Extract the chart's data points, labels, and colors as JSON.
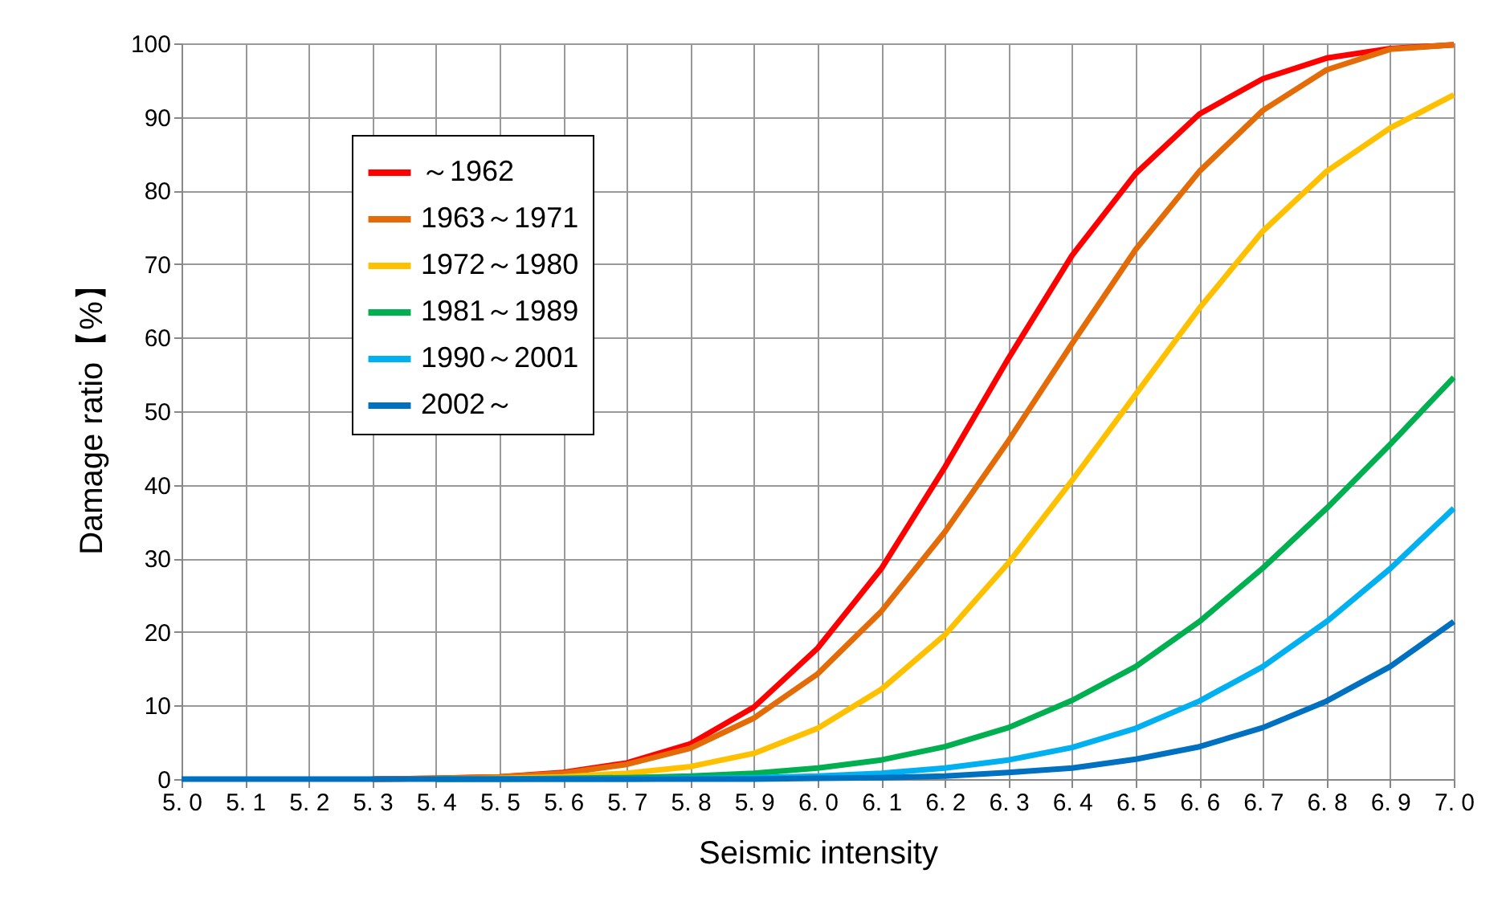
{
  "chart_data": {
    "type": "line",
    "xlabel": "Seismic intensity",
    "ylabel": "Damage ratio【%】",
    "categories": [
      "5. 0",
      "5. 1",
      "5. 2",
      "5. 3",
      "5. 4",
      "5. 5",
      "5. 6",
      "5. 7",
      "5. 8",
      "5. 9",
      "6. 0",
      "6. 1",
      "6. 2",
      "6. 3",
      "6. 4",
      "6. 5",
      "6. 6",
      "6. 7",
      "6. 8",
      "6. 9",
      "7. 0"
    ],
    "ylim": [
      0,
      100
    ],
    "yticks": [
      0,
      10,
      20,
      30,
      40,
      50,
      60,
      70,
      80,
      90,
      100
    ],
    "grid": true,
    "legend": "top left",
    "marker": "none",
    "line_style": "solid",
    "series": [
      {
        "name": "～1962",
        "color": "#ff0000",
        "values": [
          null,
          null,
          null,
          0,
          0.1,
          0.3,
          0.9,
          2.2,
          4.8,
          9.8,
          17.8,
          28.6,
          42.4,
          57.2,
          71.2,
          82.3,
          90.4,
          95.2,
          98.0,
          99.3,
          99.8
        ]
      },
      {
        "name": "1963～1971",
        "color": "#e36c09",
        "values": [
          null,
          null,
          null,
          0,
          0.1,
          0.3,
          0.8,
          2.0,
          4.2,
          8.3,
          14.3,
          22.8,
          33.6,
          46.0,
          59.2,
          72.0,
          82.6,
          90.9,
          96.4,
          99.2,
          99.8
        ]
      },
      {
        "name": "1972～1980",
        "color": "#ffc000",
        "values": [
          null,
          null,
          null,
          null,
          0,
          0.1,
          0.3,
          0.8,
          1.7,
          3.5,
          6.9,
          12.2,
          19.6,
          29.4,
          40.6,
          52.3,
          64.0,
          74.5,
          82.6,
          88.5,
          93.0
        ]
      },
      {
        "name": "1981～1989",
        "color": "#00b050",
        "values": [
          null,
          null,
          null,
          null,
          0,
          0,
          0.1,
          0.2,
          0.4,
          0.8,
          1.5,
          2.6,
          4.4,
          7.0,
          10.7,
          15.3,
          21.4,
          28.7,
          36.8,
          45.5,
          54.6
        ]
      },
      {
        "name": "1990～2001",
        "color": "#00b0f0",
        "values": [
          null,
          null,
          null,
          null,
          0,
          0,
          0,
          0,
          0.1,
          0.2,
          0.4,
          0.8,
          1.5,
          2.6,
          4.3,
          6.9,
          10.6,
          15.3,
          21.4,
          28.6,
          36.8
        ]
      },
      {
        "name": "2002～",
        "color": "#0070c0",
        "values": [
          0,
          0,
          0,
          0,
          0,
          0,
          0,
          0,
          0,
          0,
          0.1,
          0.2,
          0.4,
          0.9,
          1.5,
          2.7,
          4.4,
          7.0,
          10.6,
          15.3,
          21.4
        ]
      }
    ]
  }
}
